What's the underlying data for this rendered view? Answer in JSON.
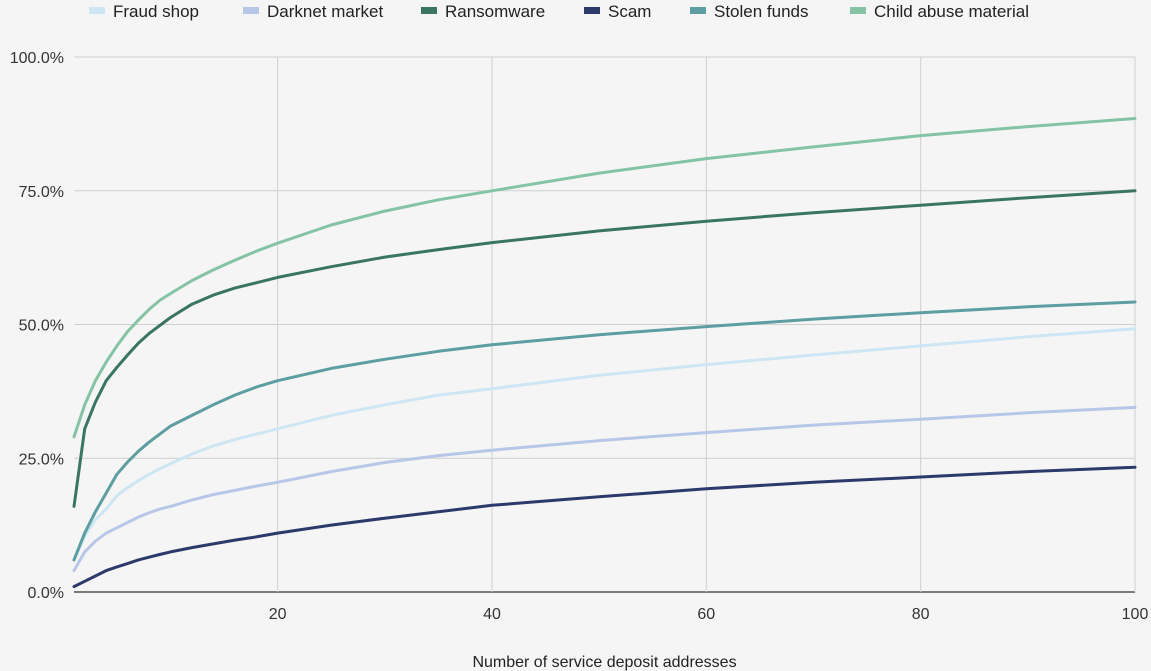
{
  "chart_data": {
    "type": "line",
    "title": "",
    "xlabel": "Number of service deposit addresses",
    "ylabel": "",
    "xlim": [
      1,
      100
    ],
    "ylim": [
      0,
      100
    ],
    "grid": true,
    "legend_position": "top",
    "x_ticks": [
      20,
      40,
      60,
      80,
      100
    ],
    "y_ticks": [
      "0.0%",
      "25.0%",
      "50.0%",
      "75.0%",
      "100.0%"
    ],
    "y_tick_values": [
      0,
      25,
      50,
      75,
      100
    ],
    "x": [
      1,
      2,
      3,
      4,
      5,
      6,
      7,
      8,
      9,
      10,
      12,
      14,
      16,
      18,
      20,
      25,
      30,
      35,
      40,
      50,
      60,
      70,
      80,
      90,
      100
    ],
    "series": [
      {
        "name": "Fraud shop",
        "color": "#cde6f4",
        "values": [
          6,
          10.5,
          13.5,
          15.5,
          18,
          19.5,
          20.8,
          22,
          23,
          24,
          25.8,
          27.3,
          28.5,
          29.5,
          30.5,
          33,
          35,
          36.8,
          38,
          40.5,
          42.5,
          44.3,
          46,
          47.7,
          49.2
        ]
      },
      {
        "name": "Darknet market",
        "color": "#b7c7e8",
        "values": [
          4,
          7.5,
          9.5,
          11,
          12,
          13,
          14,
          14.8,
          15.5,
          16,
          17.2,
          18.2,
          19,
          19.8,
          20.5,
          22.5,
          24.2,
          25.5,
          26.5,
          28.3,
          29.8,
          31.2,
          32.3,
          33.5,
          34.5
        ]
      },
      {
        "name": "Ransomware",
        "color": "#3a7564",
        "values": [
          16,
          30.5,
          35.5,
          39.5,
          42,
          44.3,
          46.5,
          48.3,
          49.8,
          51.3,
          53.8,
          55.5,
          56.8,
          57.8,
          58.8,
          60.8,
          62.6,
          64,
          65.3,
          67.5,
          69.3,
          70.9,
          72.3,
          73.7,
          75
        ]
      },
      {
        "name": "Scam",
        "color": "#2b3a6b",
        "values": [
          1,
          2,
          3,
          4,
          4.7,
          5.3,
          6,
          6.5,
          7,
          7.5,
          8.3,
          9,
          9.7,
          10.3,
          11,
          12.5,
          13.8,
          15,
          16.2,
          17.8,
          19.3,
          20.5,
          21.5,
          22.5,
          23.3
        ]
      },
      {
        "name": "Stolen funds",
        "color": "#5c9ea2",
        "values": [
          6,
          11,
          15,
          18.5,
          22,
          24.3,
          26.3,
          28,
          29.5,
          31,
          33,
          35,
          36.8,
          38.3,
          39.5,
          41.8,
          43.5,
          45,
          46.2,
          48.1,
          49.6,
          51,
          52.2,
          53.3,
          54.2
        ]
      },
      {
        "name": "Child abuse material",
        "color": "#84c3a3",
        "values": [
          29,
          35,
          39.5,
          43,
          46,
          48.7,
          50.8,
          52.8,
          54.5,
          55.8,
          58.2,
          60.2,
          62,
          63.7,
          65.2,
          68.6,
          71.2,
          73.3,
          75,
          78.3,
          81,
          83.2,
          85.3,
          87,
          88.5
        ]
      }
    ]
  }
}
